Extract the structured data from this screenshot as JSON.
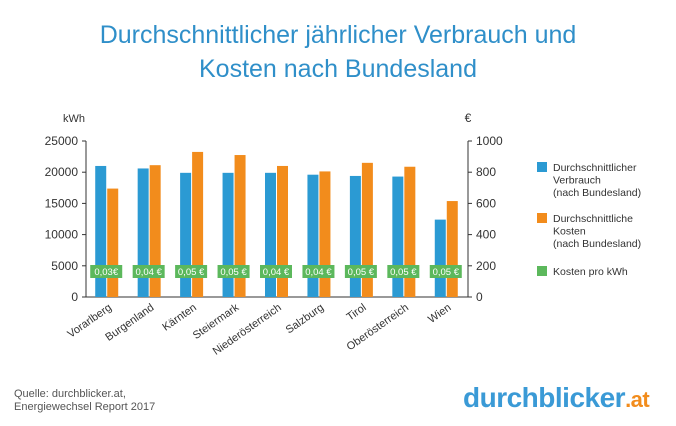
{
  "title_line1": "Durchschnittlicher jährlicher Verbrauch und",
  "title_line2": "Kosten nach Bundesland",
  "source_line1": "Quelle: durchblicker.at,",
  "source_line2": "Energiewechsel Report 2017",
  "logo_main": "durchblicker",
  "logo_tld": ".at",
  "colors": {
    "consumption": "#2b9ad3",
    "costs": "#f28c1c",
    "price": "#5cb85c",
    "title": "#2f8fc9"
  },
  "chart_data": {
    "type": "bar",
    "title": "Durchschnittlicher jährlicher Verbrauch und Kosten nach Bundesland",
    "categories": [
      "Vorarlberg",
      "Burgenland",
      "Kärnten",
      "Steiermark",
      "Niederösterreich",
      "Salzburg",
      "Tirol",
      "Oberösterreich",
      "Wien"
    ],
    "series": [
      {
        "name": "Durchschnittlicher Verbrauch (nach Bundesland)",
        "axis": "left",
        "values": [
          21000,
          20600,
          19900,
          19900,
          19900,
          19600,
          19400,
          19300,
          12400
        ]
      },
      {
        "name": "Durchschnittliche Kosten (nach Bundesland)",
        "axis": "right",
        "values": [
          695,
          845,
          930,
          910,
          840,
          805,
          860,
          835,
          615
        ]
      }
    ],
    "price_labels": [
      "0,03€",
      "0,04 €",
      "0,05 €",
      "0,05 €",
      "0,04 €",
      "0,04 €",
      "0,05 €",
      "0,05 €",
      "0,05 €"
    ],
    "left_axis": {
      "label": "kWh",
      "ylim": [
        0,
        25000
      ],
      "ticks": [
        0,
        5000,
        10000,
        15000,
        20000,
        25000
      ]
    },
    "right_axis": {
      "label": "€",
      "ylim": [
        0,
        1000
      ],
      "ticks": [
        0,
        200,
        400,
        600,
        800,
        1000
      ]
    },
    "legend": [
      {
        "key": "consumption",
        "lines": [
          "Durchschnittlicher",
          "Verbrauch",
          "(nach Bundesland)"
        ]
      },
      {
        "key": "costs",
        "lines": [
          "Durchschnittliche",
          "Kosten",
          "(nach Bundesland)"
        ]
      },
      {
        "key": "price",
        "lines": [
          "Kosten pro kWh"
        ]
      }
    ],
    "legend_position": "right"
  }
}
